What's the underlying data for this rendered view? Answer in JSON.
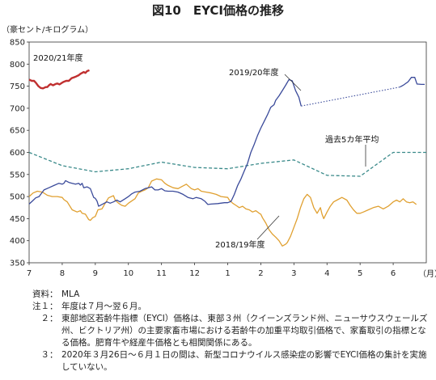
{
  "chart_data": {
    "type": "line",
    "title": "図10　EYCI価格の推移",
    "ylabel": "（豪セント/キログラム）",
    "xlabel": "（月）",
    "ylim": [
      350,
      850
    ],
    "yticks": [
      "350",
      "400",
      "450",
      "500",
      "550",
      "600",
      "650",
      "700",
      "750",
      "800",
      "850"
    ],
    "xlim": [
      0,
      12
    ],
    "xticks": [
      "7",
      "8",
      "9",
      "10",
      "11",
      "12",
      "1",
      "2",
      "3",
      "4",
      "5",
      "6"
    ],
    "grid": false,
    "series": [
      {
        "name": "2018/19年度",
        "color": "#e0a030",
        "points": [
          [
            0.0,
            500
          ],
          [
            0.12,
            508
          ],
          [
            0.25,
            512
          ],
          [
            0.4,
            510
          ],
          [
            0.55,
            503
          ],
          [
            0.7,
            500
          ],
          [
            0.85,
            500
          ],
          [
            1.0,
            498
          ],
          [
            1.05,
            493
          ],
          [
            1.15,
            488
          ],
          [
            1.3,
            470
          ],
          [
            1.45,
            465
          ],
          [
            1.55,
            468
          ],
          [
            1.6,
            462
          ],
          [
            1.7,
            460
          ],
          [
            1.8,
            448
          ],
          [
            1.85,
            446
          ],
          [
            1.92,
            452
          ],
          [
            2.0,
            455
          ],
          [
            2.08,
            470
          ],
          [
            2.2,
            472
          ],
          [
            2.3,
            485
          ],
          [
            2.4,
            497
          ],
          [
            2.55,
            502
          ],
          [
            2.6,
            492
          ],
          [
            2.7,
            485
          ],
          [
            2.8,
            480
          ],
          [
            2.9,
            478
          ],
          [
            3.0,
            485
          ],
          [
            3.1,
            490
          ],
          [
            3.2,
            495
          ],
          [
            3.3,
            508
          ],
          [
            3.4,
            512
          ],
          [
            3.5,
            515
          ],
          [
            3.6,
            520
          ],
          [
            3.7,
            535
          ],
          [
            3.85,
            540
          ],
          [
            4.0,
            538
          ],
          [
            4.1,
            530
          ],
          [
            4.2,
            525
          ],
          [
            4.35,
            520
          ],
          [
            4.5,
            518
          ],
          [
            4.6,
            522
          ],
          [
            4.75,
            528
          ],
          [
            4.9,
            518
          ],
          [
            5.0,
            515
          ],
          [
            5.1,
            518
          ],
          [
            5.2,
            512
          ],
          [
            5.35,
            510
          ],
          [
            5.5,
            508
          ],
          [
            5.65,
            505
          ],
          [
            5.8,
            500
          ],
          [
            6.0,
            498
          ],
          [
            6.05,
            492
          ],
          [
            6.15,
            485
          ],
          [
            6.25,
            480
          ],
          [
            6.35,
            475
          ],
          [
            6.45,
            478
          ],
          [
            6.55,
            472
          ],
          [
            6.65,
            470
          ],
          [
            6.75,
            465
          ],
          [
            6.85,
            468
          ],
          [
            6.95,
            462
          ],
          [
            7.0,
            460
          ],
          [
            7.05,
            452
          ],
          [
            7.15,
            440
          ],
          [
            7.25,
            425
          ],
          [
            7.35,
            415
          ],
          [
            7.45,
            408
          ],
          [
            7.55,
            400
          ],
          [
            7.65,
            388
          ],
          [
            7.75,
            392
          ],
          [
            7.8,
            396
          ],
          [
            7.9,
            410
          ],
          [
            8.0,
            430
          ],
          [
            8.1,
            450
          ],
          [
            8.2,
            475
          ],
          [
            8.3,
            495
          ],
          [
            8.4,
            505
          ],
          [
            8.5,
            498
          ],
          [
            8.6,
            475
          ],
          [
            8.7,
            462
          ],
          [
            8.8,
            475
          ],
          [
            8.85,
            460
          ],
          [
            8.9,
            450
          ],
          [
            9.0,
            465
          ],
          [
            9.1,
            478
          ],
          [
            9.2,
            488
          ],
          [
            9.3,
            492
          ],
          [
            9.45,
            498
          ],
          [
            9.6,
            492
          ],
          [
            9.7,
            480
          ],
          [
            9.8,
            470
          ],
          [
            9.9,
            462
          ],
          [
            10.0,
            462
          ],
          [
            10.1,
            465
          ],
          [
            10.25,
            470
          ],
          [
            10.4,
            475
          ],
          [
            10.55,
            478
          ],
          [
            10.7,
            472
          ],
          [
            10.85,
            478
          ],
          [
            11.0,
            488
          ],
          [
            11.1,
            492
          ],
          [
            11.2,
            488
          ],
          [
            11.3,
            495
          ],
          [
            11.4,
            488
          ],
          [
            11.5,
            486
          ],
          [
            11.6,
            488
          ],
          [
            11.7,
            482
          ]
        ]
      },
      {
        "name": "2019/20年度",
        "color": "#3a4a9a",
        "points": [
          [
            0.0,
            483
          ],
          [
            0.1,
            490
          ],
          [
            0.2,
            497
          ],
          [
            0.3,
            500
          ],
          [
            0.45,
            515
          ],
          [
            0.6,
            520
          ],
          [
            0.75,
            525
          ],
          [
            0.9,
            530
          ],
          [
            1.0,
            528
          ],
          [
            1.05,
            530
          ],
          [
            1.1,
            536
          ],
          [
            1.2,
            532
          ],
          [
            1.3,
            530
          ],
          [
            1.4,
            528
          ],
          [
            1.5,
            530
          ],
          [
            1.55,
            526
          ],
          [
            1.6,
            530
          ],
          [
            1.65,
            520
          ],
          [
            1.75,
            522
          ],
          [
            1.85,
            518
          ],
          [
            1.95,
            498
          ],
          [
            2.0,
            496
          ],
          [
            2.05,
            490
          ],
          [
            2.1,
            478
          ],
          [
            2.2,
            482
          ],
          [
            2.35,
            488
          ],
          [
            2.45,
            485
          ],
          [
            2.55,
            488
          ],
          [
            2.65,
            492
          ],
          [
            2.75,
            488
          ],
          [
            2.9,
            495
          ],
          [
            3.0,
            500
          ],
          [
            3.1,
            506
          ],
          [
            3.2,
            510
          ],
          [
            3.35,
            512
          ],
          [
            3.5,
            518
          ],
          [
            3.6,
            520
          ],
          [
            3.7,
            522
          ],
          [
            3.8,
            515
          ],
          [
            3.9,
            515
          ],
          [
            4.0,
            518
          ],
          [
            4.1,
            513
          ],
          [
            4.2,
            512
          ],
          [
            4.35,
            512
          ],
          [
            4.5,
            510
          ],
          [
            4.65,
            505
          ],
          [
            4.8,
            498
          ],
          [
            4.95,
            495
          ],
          [
            5.05,
            498
          ],
          [
            5.2,
            495
          ],
          [
            5.3,
            490
          ],
          [
            5.4,
            482
          ],
          [
            5.5,
            483
          ],
          [
            5.7,
            484
          ],
          [
            5.9,
            486
          ],
          [
            6.0,
            486
          ],
          [
            6.1,
            489
          ],
          [
            6.2,
            505
          ],
          [
            6.3,
            525
          ],
          [
            6.4,
            540
          ],
          [
            6.5,
            558
          ],
          [
            6.6,
            575
          ],
          [
            6.7,
            600
          ],
          [
            6.8,
            618
          ],
          [
            6.9,
            638
          ],
          [
            7.0,
            655
          ],
          [
            7.1,
            670
          ],
          [
            7.2,
            685
          ],
          [
            7.3,
            702
          ],
          [
            7.4,
            708
          ],
          [
            7.45,
            718
          ],
          [
            7.55,
            728
          ],
          [
            7.65,
            740
          ],
          [
            7.75,
            752
          ],
          [
            7.85,
            765
          ],
          [
            7.95,
            762
          ],
          [
            8.05,
            740
          ],
          [
            8.15,
            725
          ],
          [
            8.22,
            705
          ]
        ],
        "gap_from": [
          8.22,
          705
        ],
        "gap_to": [
          11.2,
          748
        ],
        "points_after": [
          [
            11.2,
            748
          ],
          [
            11.3,
            752
          ],
          [
            11.45,
            760
          ],
          [
            11.55,
            770
          ],
          [
            11.65,
            770
          ],
          [
            11.72,
            755
          ],
          [
            11.85,
            754
          ],
          [
            11.95,
            754
          ]
        ]
      },
      {
        "name": "2020/21年度",
        "color": "#c03030",
        "points": [
          [
            0.0,
            765
          ],
          [
            0.08,
            762
          ],
          [
            0.15,
            762
          ],
          [
            0.2,
            758
          ],
          [
            0.28,
            750
          ],
          [
            0.35,
            746
          ],
          [
            0.42,
            745
          ],
          [
            0.5,
            748
          ],
          [
            0.55,
            748
          ],
          [
            0.6,
            752
          ],
          [
            0.65,
            755
          ],
          [
            0.72,
            752
          ],
          [
            0.8,
            755
          ],
          [
            0.85,
            756
          ],
          [
            0.92,
            754
          ],
          [
            1.0,
            758
          ],
          [
            1.05,
            760
          ],
          [
            1.12,
            762
          ],
          [
            1.2,
            762
          ],
          [
            1.28,
            768
          ],
          [
            1.35,
            770
          ],
          [
            1.42,
            772
          ],
          [
            1.5,
            775
          ],
          [
            1.55,
            778
          ],
          [
            1.6,
            780
          ],
          [
            1.65,
            782
          ],
          [
            1.7,
            780
          ],
          [
            1.75,
            784
          ],
          [
            1.82,
            786
          ]
        ]
      },
      {
        "name": "過去5カ年平均",
        "color": "#3a8a8a",
        "dashed": true,
        "points": [
          [
            0,
            600
          ],
          [
            1,
            570
          ],
          [
            2,
            556
          ],
          [
            3,
            563
          ],
          [
            4,
            578
          ],
          [
            5,
            566
          ],
          [
            6,
            563
          ],
          [
            7,
            575
          ],
          [
            8,
            583
          ],
          [
            9,
            548
          ],
          [
            10,
            546
          ],
          [
            11,
            600
          ],
          [
            12,
            600
          ]
        ]
      }
    ],
    "annotations": {
      "s2021": "2020/21年度",
      "s1920": "2019/20年度",
      "savg": "過去5カ年平均",
      "s1819": "2018/19年度"
    }
  },
  "notes": [
    {
      "label": "資料：",
      "text": "MLA"
    },
    {
      "label": "注１：",
      "text": "年度は７月～翌６月。"
    },
    {
      "label": "　２：",
      "text": "東部地区若齢牛指標（EYCI）価格は、東部３州（クイーンズランド州、ニューサウスウェールズ州、ビクトリア州）の主要家畜市場における若齢牛の加重平均取引価格で、家畜取引の指標となる価格。肥育牛や経産牛価格とも相関関係にある。"
    },
    {
      "label": "　３：",
      "text": "2020年３月26日～６月１日の間は、新型コロナウイルス感染症の影響でEYCI価格の集計を実施していない。"
    }
  ]
}
